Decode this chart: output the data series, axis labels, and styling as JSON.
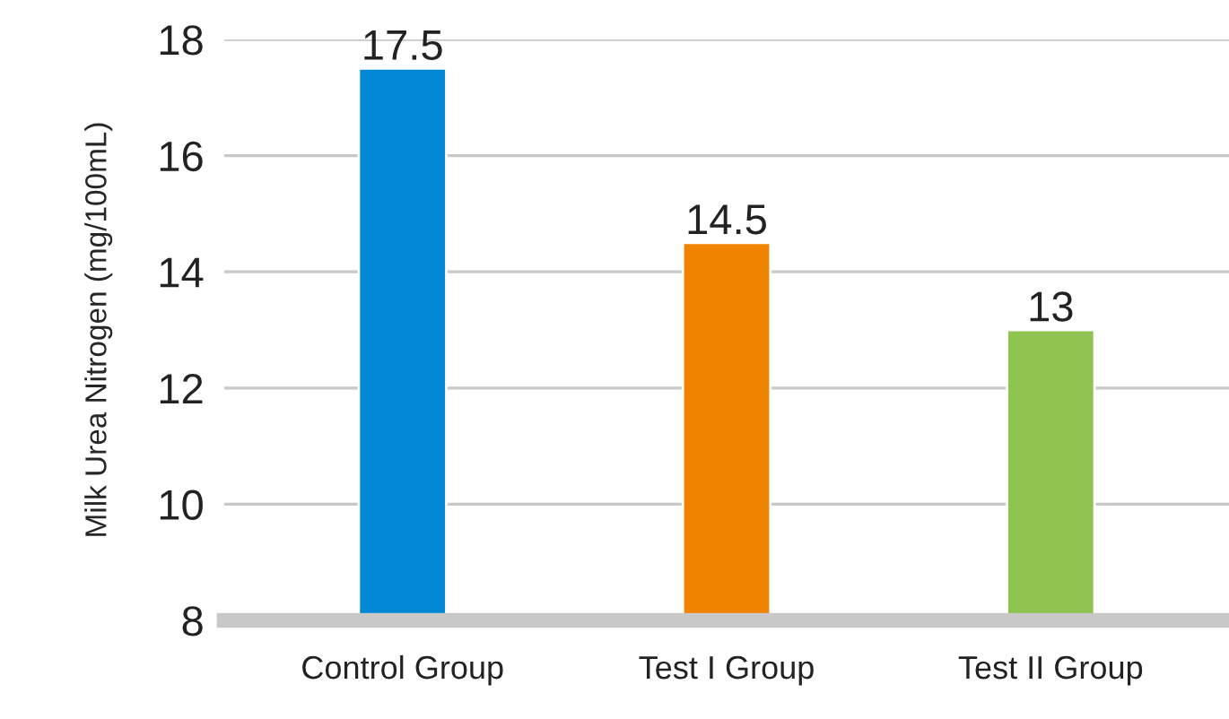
{
  "chart_data": {
    "type": "bar",
    "ylabel": "Milk Urea Nitrogen (mg/100mL)",
    "categories": [
      "Control Group",
      "Test I Group",
      "Test II Group"
    ],
    "values": [
      17.5,
      14.5,
      13
    ],
    "colors": [
      "#0088d6",
      "#f08300",
      "#8fc450"
    ],
    "ylim": [
      8,
      18
    ],
    "yticks": [
      8,
      10,
      12,
      14,
      16,
      18
    ],
    "grid": "y",
    "data_labels": true
  }
}
